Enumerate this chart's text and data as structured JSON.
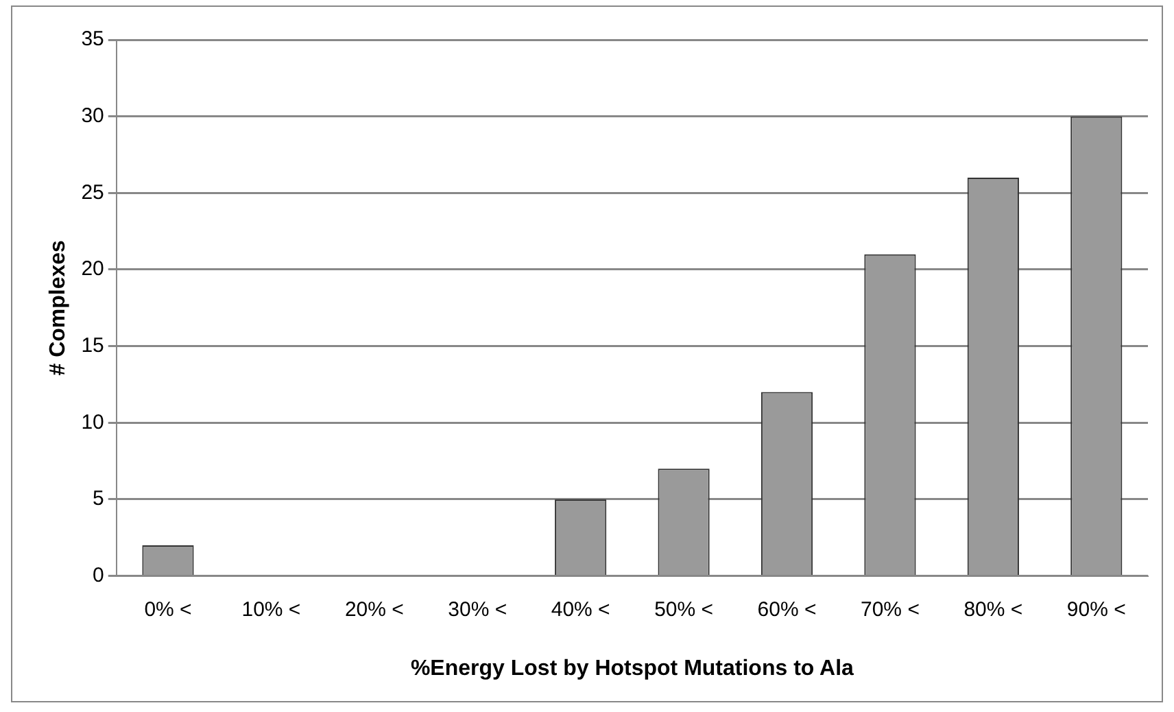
{
  "chart_data": {
    "type": "bar",
    "xlabel": "%Energy Lost by Hotspot Mutations to Ala",
    "ylabel": "# Complexes",
    "categories": [
      "0% <",
      "10% <",
      "20% <",
      "30% <",
      "40% <",
      "50% <",
      "60% <",
      "70% <",
      "80% <",
      "90% <"
    ],
    "values": [
      2,
      0,
      0,
      0,
      5,
      7,
      12,
      21,
      26,
      30
    ],
    "color": "#9a9a9a",
    "ylim": [
      0,
      35
    ],
    "yticks": [
      0,
      5,
      10,
      15,
      20,
      25,
      30,
      35
    ],
    "grid": "y",
    "legend": false
  }
}
